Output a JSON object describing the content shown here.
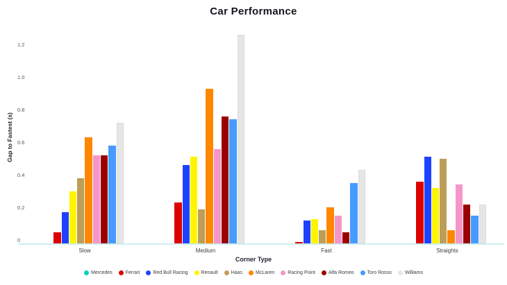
{
  "title": "Car Performance",
  "chart_data": {
    "type": "bar",
    "title": "Car Performance",
    "xlabel": "Corner Type",
    "ylabel": "Gap to Fastest (s)",
    "categories": [
      "Slow",
      "Medium",
      "Fast",
      "Straights"
    ],
    "yticks": [
      0,
      0.2,
      0.4,
      0.6,
      0.8,
      1.0,
      1.2
    ],
    "ytick_labels": [
      "0",
      "0.2",
      "0.4",
      "0.6",
      "0.8",
      "1.0",
      "1.2"
    ],
    "ylim": [
      0,
      1.31
    ],
    "grid": false,
    "legend_position": "bottom",
    "axis_line_color": "#CDEDED",
    "series": [
      {
        "name": "Mercedes",
        "color": "#00D2BE",
        "values": [
          0.0,
          0.0,
          0.0,
          0.0
        ]
      },
      {
        "name": "Ferrari",
        "color": "#DC0000",
        "values": [
          0.07,
          0.25,
          0.01,
          0.38
        ]
      },
      {
        "name": "Red Bull Racing",
        "color": "#1E41FF",
        "values": [
          0.19,
          0.48,
          0.14,
          0.53
        ]
      },
      {
        "name": "Renault",
        "color": "#FFF500",
        "values": [
          0.32,
          0.53,
          0.15,
          0.34
        ]
      },
      {
        "name": "Haas",
        "color": "#BD9E57",
        "values": [
          0.4,
          0.21,
          0.08,
          0.52
        ]
      },
      {
        "name": "McLaren",
        "color": "#FF8700",
        "values": [
          0.65,
          0.95,
          0.22,
          0.08
        ]
      },
      {
        "name": "Racing Point",
        "color": "#F596C8",
        "values": [
          0.54,
          0.58,
          0.17,
          0.36
        ]
      },
      {
        "name": "Alfa Romeo",
        "color": "#9B0000",
        "values": [
          0.54,
          0.78,
          0.07,
          0.24
        ]
      },
      {
        "name": "Toro Rosso",
        "color": "#469BFF",
        "values": [
          0.6,
          0.76,
          0.37,
          0.17
        ]
      },
      {
        "name": "Williams",
        "color": "#E6E6E6",
        "values": [
          0.74,
          1.28,
          0.45,
          0.24
        ]
      }
    ]
  }
}
